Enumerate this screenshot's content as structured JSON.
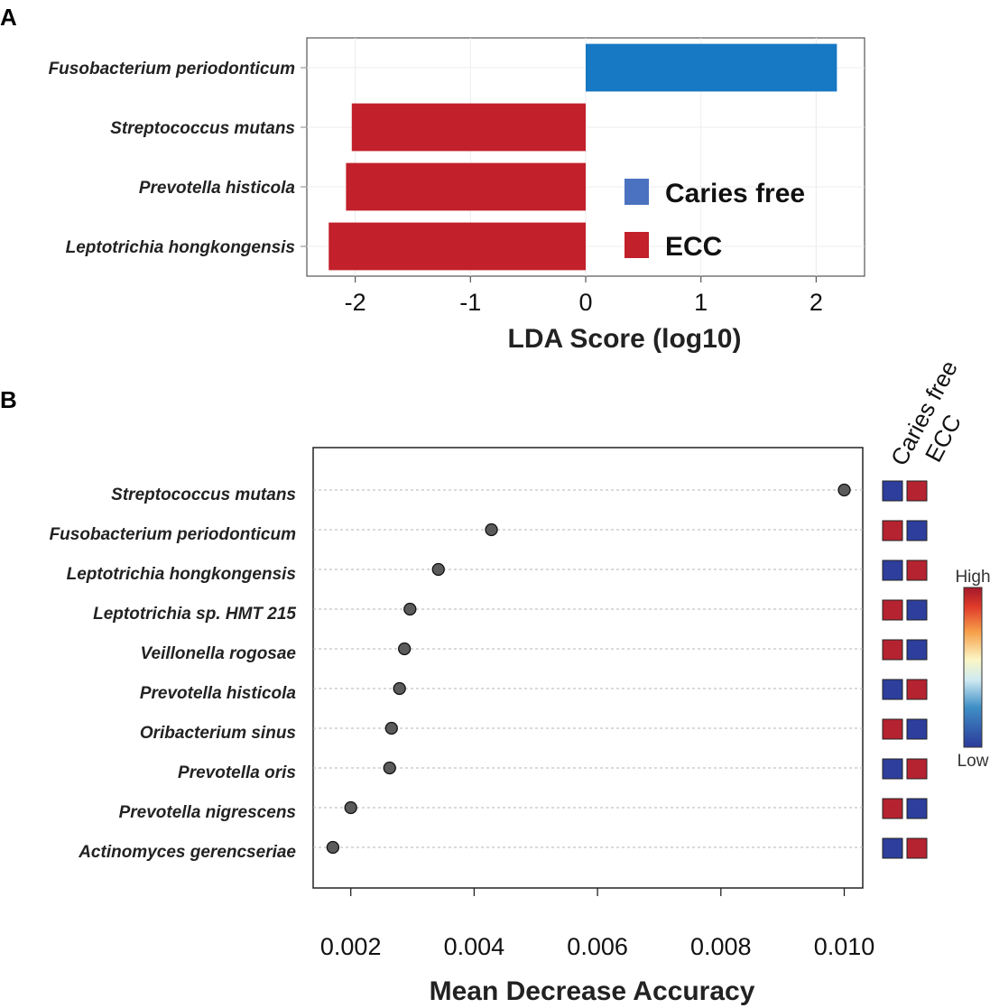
{
  "chart_data": [
    {
      "panel": "A",
      "type": "bar",
      "orientation": "horizontal",
      "categories": [
        "Fusobacterium periodonticum",
        "Streptococcus mutans",
        "Prevotella histicola",
        "Leptotrichia hongkongensis"
      ],
      "values": [
        2.18,
        -2.03,
        -2.08,
        -2.23
      ],
      "groups": [
        "Caries free",
        "ECC",
        "ECC",
        "ECC"
      ],
      "xlabel": "LDA Score (log10)",
      "xticks": [
        -2,
        -1,
        0,
        1,
        2
      ],
      "xtick_labels": [
        "-2",
        "-1",
        "0",
        "1",
        "2"
      ],
      "xlim": [
        -2.42,
        2.42
      ],
      "grid": true,
      "legend": {
        "placement": "bottom-right",
        "entries": [
          {
            "label": "Caries free",
            "color": "#4a72c0"
          },
          {
            "label": "ECC",
            "color": "#c2202a"
          }
        ]
      },
      "colors": {
        "Caries free": "#1778c4",
        "ECC": "#c2202a"
      }
    },
    {
      "panel": "B",
      "type": "scatter",
      "subtype": "dot-plot",
      "categories": [
        "Streptococcus mutans",
        "Fusobacterium periodonticum",
        "Leptotrichia hongkongensis",
        "Leptotrichia sp. HMT 215",
        "Veillonella rogosae",
        "Prevotella histicola",
        "Oribacterium sinus",
        "Prevotella oris",
        "Prevotella nigrescens",
        "Actinomyces gerencseriae"
      ],
      "values": [
        0.01,
        0.00428,
        0.00342,
        0.00296,
        0.00287,
        0.00279,
        0.00266,
        0.00263,
        0.002,
        0.00171
      ],
      "xlabel": "Mean Decrease Accuracy",
      "xticks": [
        0.002,
        0.004,
        0.006,
        0.008,
        0.01
      ],
      "xtick_labels": [
        "0.002",
        "0.004",
        "0.006",
        "0.008",
        "0.010"
      ],
      "xlim": [
        0.00139,
        0.0103
      ],
      "grid": true,
      "heatmap": {
        "columns": [
          "Caries free",
          "ECC"
        ],
        "levels": [
          [
            "Low",
            "High"
          ],
          [
            "High",
            "Low"
          ],
          [
            "Low",
            "High"
          ],
          [
            "High",
            "Low"
          ],
          [
            "High",
            "Low"
          ],
          [
            "Low",
            "High"
          ],
          [
            "High",
            "Low"
          ],
          [
            "Low",
            "High"
          ],
          [
            "High",
            "Low"
          ],
          [
            "Low",
            "High"
          ]
        ],
        "colorbar": {
          "high_label": "High",
          "low_label": "Low"
        },
        "colors": {
          "High": "#b52330",
          "Low": "#2d3e9c"
        }
      }
    }
  ]
}
